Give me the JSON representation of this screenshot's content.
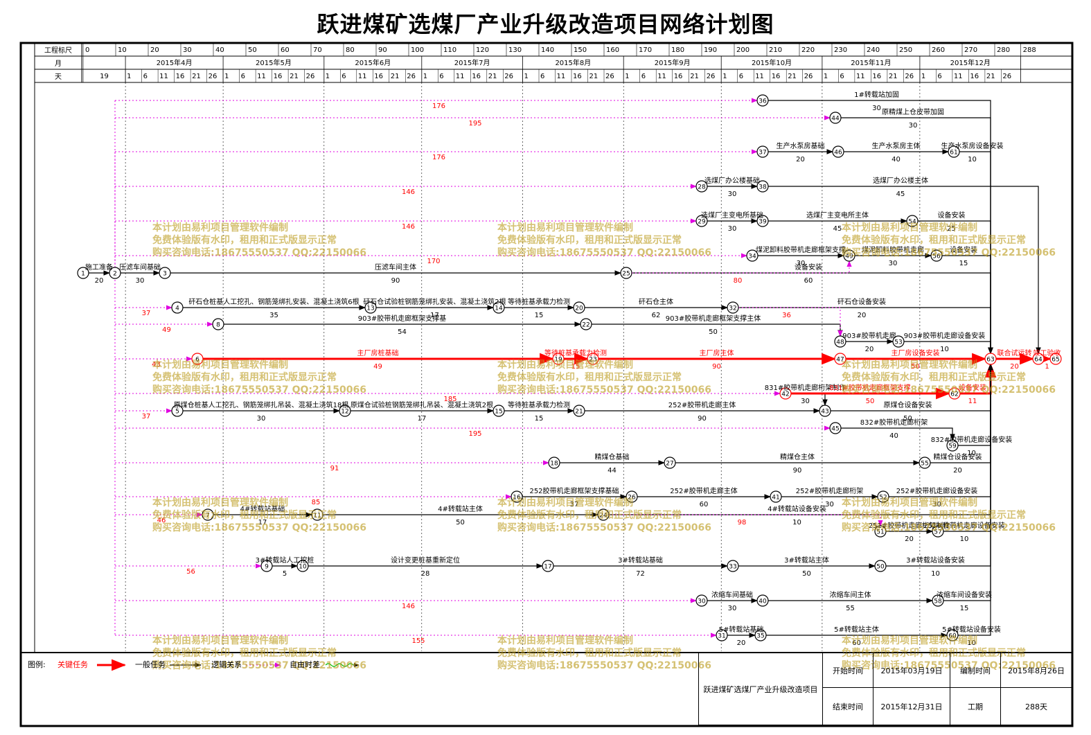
{
  "title": "跃进煤矿选煤厂产业升级改造项目网络计划图",
  "time_scale": {
    "row_labels": [
      "工程标尺",
      "月",
      "天"
    ],
    "scale_ticks": [
      0,
      10,
      20,
      30,
      40,
      50,
      60,
      70,
      80,
      90,
      100,
      110,
      120,
      130,
      140,
      150,
      160,
      170,
      180,
      190,
      200,
      210,
      220,
      230,
      240,
      250,
      260,
      270,
      280,
      288
    ],
    "months": [
      "2015年4月",
      "2015年5月",
      "2015年6月",
      "2015年7月",
      "2015年8月",
      "2015年9月",
      "2015年10月",
      "2015年11月",
      "2015年12月"
    ],
    "first_day": "19",
    "start_date": "2015-03-19",
    "day_marks": [
      "1",
      "6",
      "11",
      "16",
      "21",
      "26"
    ]
  },
  "network": {
    "nodes": [
      "1",
      "2",
      "3",
      "4",
      "5",
      "6",
      "7",
      "8",
      "9",
      "10",
      "11",
      "12",
      "13",
      "14",
      "15",
      "16",
      "17",
      "18",
      "19",
      "20",
      "21",
      "22",
      "23",
      "24",
      "25",
      "26",
      "27",
      "28",
      "29",
      "30",
      "31",
      "32",
      "33",
      "34",
      "35",
      "36",
      "37",
      "38",
      "39",
      "40",
      "41",
      "42",
      "43",
      "44",
      "45",
      "46",
      "47",
      "48",
      "49",
      "50",
      "51",
      "52",
      "53",
      "54",
      "55",
      "56",
      "57",
      "58",
      "59",
      "60",
      "61",
      "62",
      "63",
      "64",
      "65"
    ],
    "tasks": [
      {
        "from": "1",
        "to": "2",
        "name": "施工准备",
        "duration": "20",
        "type": "normal"
      },
      {
        "from": "2",
        "to": "3",
        "name": "压滤车间基础",
        "duration": "30",
        "type": "normal"
      },
      {
        "from": "3",
        "to": "25",
        "name": "压滤车间主体",
        "duration": "90",
        "type": "normal"
      },
      {
        "from": "25",
        "to": "63",
        "name": "设备安装",
        "duration": "60",
        "type": "normal"
      },
      {
        "from": "2",
        "to": "36",
        "name": "",
        "duration": "176",
        "type": "logic"
      },
      {
        "from": "36",
        "to": "63",
        "name": "1#转载站加固",
        "duration": "30",
        "type": "normal"
      },
      {
        "from": "2",
        "to": "44",
        "name": "",
        "duration": "195",
        "type": "logic"
      },
      {
        "from": "44",
        "to": "63",
        "name": "原精煤上仓皮带加固",
        "duration": "30",
        "type": "normal"
      },
      {
        "from": "2",
        "to": "37",
        "name": "",
        "duration": "176",
        "type": "logic"
      },
      {
        "from": "37",
        "to": "46",
        "name": "生产水泵房基础",
        "duration": "20",
        "type": "normal"
      },
      {
        "from": "46",
        "to": "61",
        "name": "生产水泵房主体",
        "duration": "40",
        "type": "normal"
      },
      {
        "from": "61",
        "to": "63",
        "name": "生产水泵房设备安装",
        "duration": "10",
        "type": "normal"
      },
      {
        "from": "2",
        "to": "28",
        "name": "",
        "duration": "146",
        "type": "logic"
      },
      {
        "from": "28",
        "to": "38",
        "name": "选煤厂办公楼基础",
        "duration": "30",
        "type": "normal"
      },
      {
        "from": "38",
        "to": "64",
        "name": "选煤厂办公楼主体",
        "duration": "45",
        "type": "normal"
      },
      {
        "from": "2",
        "to": "29",
        "name": "",
        "duration": "146",
        "type": "logic"
      },
      {
        "from": "29",
        "to": "39",
        "name": "选煤厂主变电所基础",
        "duration": "30",
        "type": "normal"
      },
      {
        "from": "39",
        "to": "54",
        "name": "选煤厂主变电所主体",
        "duration": "45",
        "type": "normal"
      },
      {
        "from": "54",
        "to": "63",
        "name": "设备安装",
        "duration": "25",
        "type": "normal"
      },
      {
        "from": "2",
        "to": "34",
        "name": "",
        "duration": "170",
        "type": "logic"
      },
      {
        "from": "34",
        "to": "49",
        "name": "煤泥卸料胶带机走廊框架支撑",
        "duration": "30",
        "type": "normal"
      },
      {
        "from": "49",
        "to": "56",
        "name": "煤泥卸料胶带机走廊",
        "duration": "30",
        "type": "normal"
      },
      {
        "from": "56",
        "to": "63",
        "name": "设备安装",
        "duration": "15",
        "type": "normal"
      },
      {
        "from": "25",
        "to": "49",
        "name": "",
        "duration": "80",
        "type": "logic"
      },
      {
        "from": "2",
        "to": "4",
        "name": "",
        "duration": "37",
        "type": "logic"
      },
      {
        "from": "4",
        "to": "13",
        "name": "矸石仓桩基人工挖孔、钢筋笼绑扎安装、混凝土浇筑6根",
        "duration": "35",
        "type": "normal"
      },
      {
        "from": "13",
        "to": "14",
        "name": "矸石仓试验桩钢筋笼绑扎安装、混凝土浇筑2根",
        "duration": "17",
        "type": "normal"
      },
      {
        "from": "14",
        "to": "20",
        "name": "等待桩基承载力检测",
        "duration": "15",
        "type": "normal"
      },
      {
        "from": "20",
        "to": "32",
        "name": "矸石仓主体",
        "duration": "62",
        "type": "normal"
      },
      {
        "from": "32",
        "to": "63",
        "name": "矸石仓设备安装",
        "duration": "20",
        "type": "normal"
      },
      {
        "from": "2",
        "to": "8",
        "name": "",
        "duration": "49",
        "type": "logic"
      },
      {
        "from": "8",
        "to": "22",
        "name": "903#胶带机走廊框架支撑基",
        "duration": "54",
        "type": "normal"
      },
      {
        "from": "22",
        "to": "48",
        "name": "903#胶带机走廊框架支撑主体",
        "duration": "50",
        "type": "normal"
      },
      {
        "from": "48",
        "to": "53",
        "name": "903#胶带机走廊",
        "duration": "20",
        "type": "normal"
      },
      {
        "from": "53",
        "to": "63",
        "name": "903#胶带机走廊设备安装",
        "duration": "10",
        "type": "normal"
      },
      {
        "from": "32",
        "to": "48",
        "name": "",
        "duration": "36",
        "type": "logic"
      },
      {
        "from": "2",
        "to": "6",
        "name": "",
        "duration": "43",
        "type": "logic"
      },
      {
        "from": "6",
        "to": "19",
        "name": "主厂房桩基础",
        "duration": "49",
        "type": "critical"
      },
      {
        "from": "19",
        "to": "23",
        "name": "等待桩基承载力检测",
        "duration": "15",
        "type": "critical"
      },
      {
        "from": "23",
        "to": "47",
        "name": "主厂房主体",
        "duration": "90",
        "type": "critical"
      },
      {
        "from": "47",
        "to": "63",
        "name": "主厂房设备安装",
        "duration": "50",
        "type": "critical"
      },
      {
        "from": "63",
        "to": "64",
        "name": "联合试运转",
        "duration": "20",
        "type": "critical"
      },
      {
        "from": "64",
        "to": "65",
        "name": "竣工验收",
        "duration": "1",
        "type": "critical"
      },
      {
        "from": "42",
        "to": "43",
        "name": "831#胶带机走廊桁架制作",
        "duration": "30",
        "type": "normal"
      },
      {
        "from": "42",
        "to": "62",
        "name": "831#胶带机走廊框架支撑",
        "duration": "50",
        "type": "critical"
      },
      {
        "from": "62",
        "to": "63",
        "name": "设备安装",
        "duration": "11",
        "type": "critical"
      },
      {
        "from": "2",
        "to": "42",
        "name": "",
        "duration": "185",
        "type": "logic"
      },
      {
        "from": "2",
        "to": "5",
        "name": "",
        "duration": "37",
        "type": "logic"
      },
      {
        "from": "5",
        "to": "12",
        "name": "原煤仓桩基人工挖孔、钢筋笼绑扎吊装、混凝土浇筑18根",
        "duration": "30",
        "type": "normal"
      },
      {
        "from": "12",
        "to": "15",
        "name": "原煤仓试验桩钢筋笼绑扎吊装、混凝土浇筑2根",
        "duration": "17",
        "type": "normal"
      },
      {
        "from": "15",
        "to": "21",
        "name": "等待桩基承载力检测",
        "duration": "15",
        "type": "normal"
      },
      {
        "from": "21",
        "to": "43",
        "name": "252#胶带机走廊主体",
        "duration": "90",
        "type": "normal"
      },
      {
        "from": "43",
        "to": "63",
        "name": "原煤仓设备安装",
        "duration": "50",
        "type": "normal"
      },
      {
        "from": "2",
        "to": "45",
        "name": "",
        "duration": "195",
        "type": "logic"
      },
      {
        "from": "45",
        "to": "59",
        "name": "832#胶带机走廊桁架",
        "duration": "40",
        "type": "normal"
      },
      {
        "from": "59",
        "to": "63",
        "name": "832#胶带机走廊设备安装",
        "duration": "10",
        "type": "normal"
      },
      {
        "from": "2",
        "to": "18",
        "name": "",
        "duration": "91",
        "type": "logic"
      },
      {
        "from": "18",
        "to": "27",
        "name": "精煤仓基础",
        "duration": "44",
        "type": "normal"
      },
      {
        "from": "27",
        "to": "55",
        "name": "精煤仓主体",
        "duration": "90",
        "type": "normal"
      },
      {
        "from": "55",
        "to": "63",
        "name": "精煤仓设备安装",
        "duration": "20",
        "type": "normal"
      },
      {
        "from": "2",
        "to": "16",
        "name": "",
        "duration": "85",
        "type": "logic"
      },
      {
        "from": "16",
        "to": "26",
        "name": "252胶带机走廊框架支撑基础",
        "duration": "37",
        "type": "normal"
      },
      {
        "from": "26",
        "to": "41",
        "name": "252#胶带机走廊主体",
        "duration": "60",
        "type": "normal"
      },
      {
        "from": "41",
        "to": "52",
        "name": "252#胶带机走廊桁架",
        "duration": "30",
        "type": "normal"
      },
      {
        "from": "52",
        "to": "63",
        "name": "252#胶带机走廊设备安装",
        "duration": "30",
        "type": "normal"
      },
      {
        "from": "2",
        "to": "7",
        "name": "",
        "duration": "46",
        "type": "logic"
      },
      {
        "from": "7",
        "to": "11",
        "name": "4#转载站基础",
        "duration": "17",
        "type": "normal"
      },
      {
        "from": "11",
        "to": "24",
        "name": "4#转载站主体",
        "duration": "50",
        "type": "normal"
      },
      {
        "from": "24",
        "to": "63",
        "name": "4#转载站设备安装",
        "duration": "10",
        "type": "normal"
      },
      {
        "from": "24",
        "to": "51",
        "name": "",
        "duration": "98",
        "type": "logic"
      },
      {
        "from": "51",
        "to": "57",
        "name": "251#胶带机走廊桁架制作",
        "duration": "20",
        "type": "normal"
      },
      {
        "from": "57",
        "to": "63",
        "name": "251#胶带机走廊设备安装",
        "duration": "10",
        "type": "normal"
      },
      {
        "from": "2",
        "to": "9",
        "name": "",
        "duration": "56",
        "type": "logic"
      },
      {
        "from": "9",
        "to": "10",
        "name": "3#转载站人工挖桩",
        "duration": "5",
        "type": "normal"
      },
      {
        "from": "10",
        "to": "17",
        "name": "设计变更桩基重新定位",
        "duration": "28",
        "type": "normal"
      },
      {
        "from": "17",
        "to": "33",
        "name": "3#转载站基础",
        "duration": "72",
        "type": "normal"
      },
      {
        "from": "33",
        "to": "50",
        "name": "3#转载站主体",
        "duration": "50",
        "type": "normal"
      },
      {
        "from": "50",
        "to": "63",
        "name": "3#转载站设备安装",
        "duration": "10",
        "type": "normal"
      },
      {
        "from": "2",
        "to": "30",
        "name": "",
        "duration": "146",
        "type": "logic"
      },
      {
        "from": "30",
        "to": "40",
        "name": "浓缩车间基础",
        "duration": "30",
        "type": "normal"
      },
      {
        "from": "40",
        "to": "58",
        "name": "浓缩车间主体",
        "duration": "55",
        "type": "normal"
      },
      {
        "from": "58",
        "to": "63",
        "name": "浓缩车间设备安装",
        "duration": "15",
        "type": "normal"
      },
      {
        "from": "2",
        "to": "31",
        "name": "",
        "duration": "155",
        "type": "logic"
      },
      {
        "from": "31",
        "to": "35",
        "name": "5#转载站基础",
        "duration": "20",
        "type": "normal"
      },
      {
        "from": "35",
        "to": "60",
        "name": "5#转载站主体",
        "duration": "60",
        "type": "normal"
      },
      {
        "from": "60",
        "to": "63",
        "name": "5#转载站设备安装",
        "duration": "10",
        "type": "normal"
      }
    ]
  },
  "watermark": [
    "本计划由易利项目管理软件编制",
    "免费体验版有水印，租用和正式版显示正常",
    "购买咨询电话:18675550537 QQ:22150066"
  ],
  "legend": {
    "heading": "图例:",
    "critical_label": "关键任务",
    "normal_label": "一般任务",
    "logic_label": "逻辑关系",
    "float_label": "自由时差"
  },
  "info": {
    "project_name": "跃进煤矿选煤厂产业升级改造项目",
    "start_label": "开始时间",
    "start_value": "2015年03月19日",
    "compile_label": "编制时间",
    "compile_value": "2015年8月26日",
    "end_label": "结束时间",
    "end_value": "2015年12月31日",
    "duration_label": "工期",
    "duration_value": "288天"
  },
  "colors": {
    "critical": "#ff0000",
    "normal": "#000000",
    "logic": "#e000e0",
    "float": "#00bb00",
    "label": "#ff0000",
    "watermark": "#bea028"
  }
}
